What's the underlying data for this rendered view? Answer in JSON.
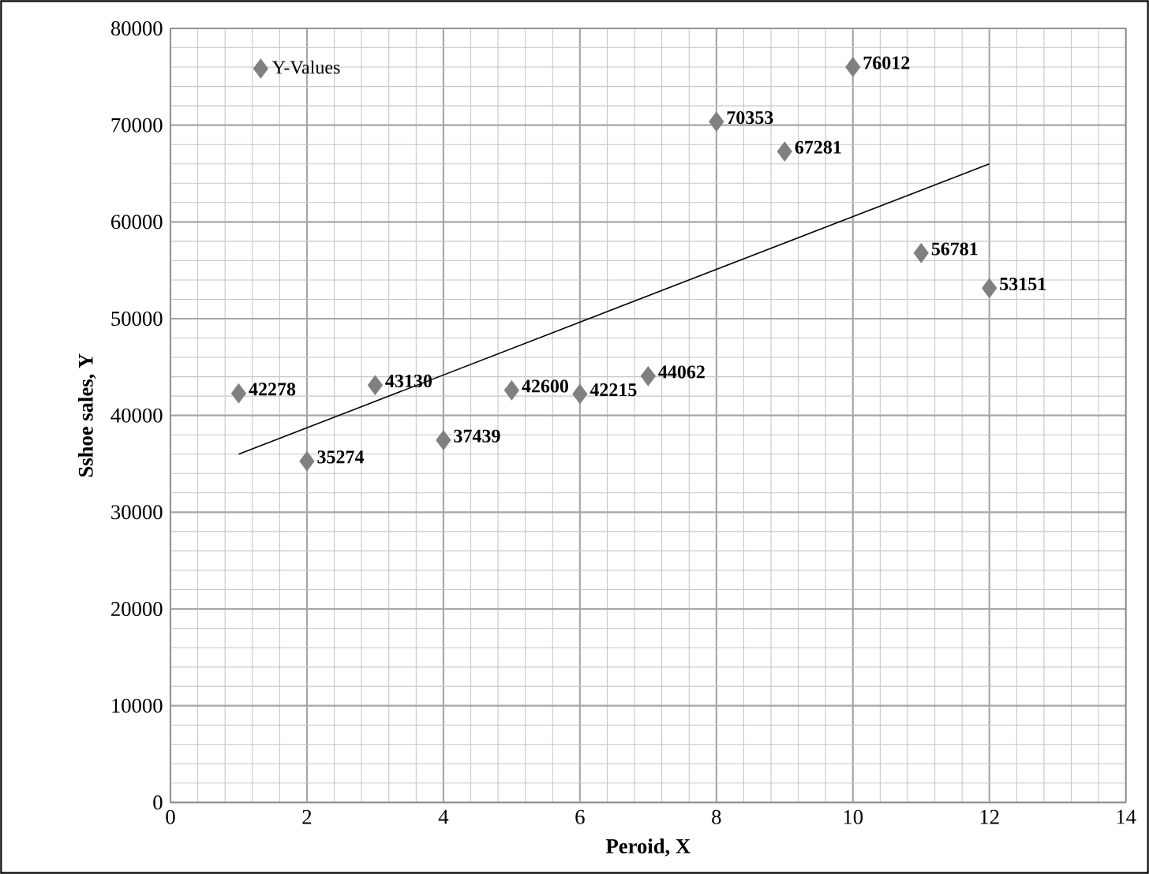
{
  "chart_data": {
    "type": "scatter",
    "xlabel": "Peroid, X",
    "ylabel": "Sshoe sales, Y",
    "x": [
      1,
      2,
      3,
      4,
      5,
      6,
      7,
      8,
      9,
      10,
      11,
      12
    ],
    "series": [
      {
        "name": "Y-Values",
        "color": "#808080",
        "values": [
          42278,
          35274,
          43130,
          37439,
          42600,
          42215,
          44062,
          70353,
          67281,
          76012,
          56781,
          53151
        ],
        "value_labels": [
          "42278",
          "35274",
          "43130",
          "37439",
          "42600",
          "42215",
          "44062",
          "70353",
          "67281",
          "76012",
          "56781",
          "53151"
        ]
      },
      {
        "type": "line",
        "color": "#000000",
        "marker": "none",
        "x": [
          1,
          12
        ],
        "values": [
          36000,
          66000
        ]
      }
    ],
    "xlim": [
      0,
      14
    ],
    "ylim": [
      0,
      80000
    ],
    "xticks": [
      0,
      2,
      4,
      6,
      8,
      10,
      12,
      14
    ],
    "yticks": [
      0,
      10000,
      20000,
      30000,
      40000,
      50000,
      60000,
      70000,
      80000
    ],
    "grid": true,
    "legend": "top left",
    "marker": "diamond"
  }
}
